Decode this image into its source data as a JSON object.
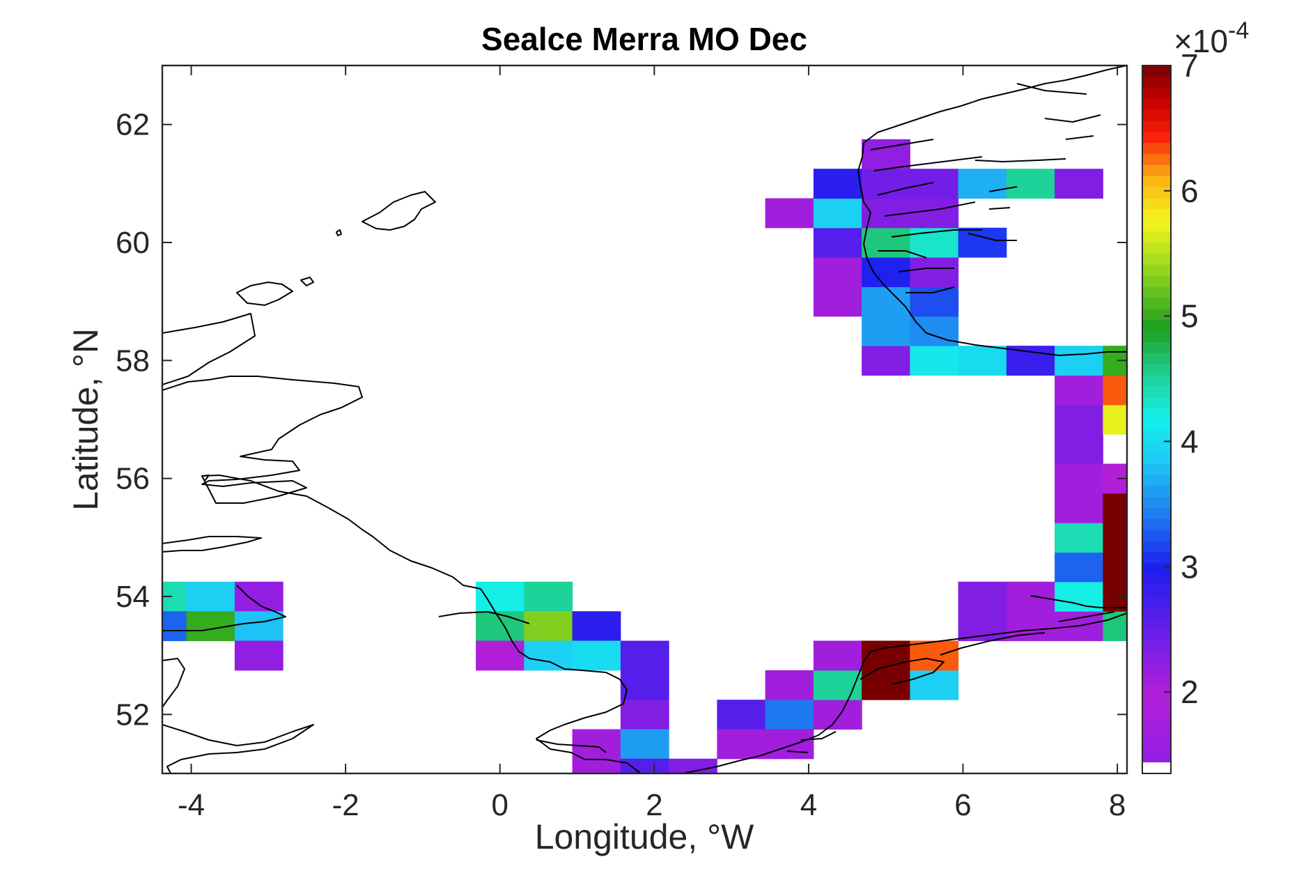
{
  "chart_data": {
    "type": "heatmap",
    "title": "Sealce Merra MO Dec",
    "xlabel": "Longitude, °W",
    "ylabel": "Latitude, °N",
    "xlim": [
      -4.375,
      8.125
    ],
    "ylim": [
      51,
      63
    ],
    "x_ticks": [
      -4,
      -2,
      0,
      2,
      4,
      6,
      8
    ],
    "y_ticks": [
      52,
      54,
      56,
      58,
      60,
      62
    ],
    "x_tick_labels": [
      "-4",
      "-2",
      "0",
      "2",
      "4",
      "6",
      "8"
    ],
    "y_tick_labels": [
      "52",
      "54",
      "56",
      "58",
      "60",
      "62"
    ],
    "colorbar": {
      "range": [
        1.35,
        7.0
      ],
      "ticks": [
        2,
        3,
        4,
        5,
        6,
        7
      ],
      "tick_labels": [
        "2",
        "3",
        "4",
        "5",
        "6",
        "7"
      ],
      "multiplier_base": "×10",
      "multiplier_exp": "-4"
    },
    "cell_size": {
      "dlon": 0.625,
      "dlat": 0.5
    },
    "grid_on": false,
    "cells": [
      [
        -4.375,
        54.0,
        4.4
      ],
      [
        -3.75,
        54.0,
        3.9
      ],
      [
        -3.125,
        54.0,
        2.2
      ],
      [
        -4.375,
        53.5,
        3.3
      ],
      [
        -3.75,
        53.5,
        5.0
      ],
      [
        -3.125,
        53.5,
        3.8
      ],
      [
        -3.125,
        53.0,
        2.2
      ],
      [
        0.0,
        54.0,
        4.2
      ],
      [
        0.625,
        54.0,
        4.5
      ],
      [
        0.0,
        53.5,
        4.6
      ],
      [
        0.625,
        53.5,
        5.3
      ],
      [
        1.25,
        53.5,
        2.9
      ],
      [
        0.0,
        53.0,
        2.0
      ],
      [
        0.625,
        53.0,
        3.9
      ],
      [
        1.25,
        53.0,
        4.0
      ],
      [
        1.875,
        53.0,
        2.6
      ],
      [
        1.875,
        52.5,
        2.6
      ],
      [
        1.875,
        52.0,
        2.3
      ],
      [
        1.25,
        51.5,
        2.1
      ],
      [
        1.875,
        51.5,
        3.6
      ],
      [
        1.25,
        51.0,
        2.1
      ],
      [
        1.875,
        51.0,
        2.6
      ],
      [
        2.5,
        51.0,
        2.3
      ],
      [
        3.125,
        52.0,
        2.6
      ],
      [
        3.75,
        52.0,
        3.4
      ],
      [
        4.375,
        52.0,
        2.1
      ],
      [
        3.125,
        51.5,
        2.1
      ],
      [
        3.75,
        51.5,
        2.1
      ],
      [
        3.75,
        52.5,
        2.1
      ],
      [
        4.375,
        52.5,
        4.5
      ],
      [
        5.0,
        52.5,
        7.0
      ],
      [
        5.625,
        52.5,
        3.9
      ],
      [
        4.375,
        53.0,
        2.1
      ],
      [
        5.0,
        53.0,
        7.0
      ],
      [
        5.625,
        53.0,
        6.3
      ],
      [
        6.25,
        53.5,
        2.3
      ],
      [
        6.875,
        53.5,
        2.1
      ],
      [
        7.5,
        53.5,
        2.1
      ],
      [
        8.125,
        53.5,
        4.6
      ],
      [
        6.25,
        54.0,
        2.3
      ],
      [
        6.875,
        54.0,
        2.1
      ],
      [
        7.5,
        54.0,
        4.2
      ],
      [
        8.125,
        54.0,
        7.0
      ],
      [
        7.5,
        54.5,
        3.3
      ],
      [
        8.125,
        54.5,
        7.0
      ],
      [
        7.5,
        55.0,
        4.4
      ],
      [
        8.125,
        55.0,
        7.0
      ],
      [
        7.5,
        55.5,
        2.1
      ],
      [
        8.125,
        55.5,
        7.0
      ],
      [
        7.5,
        56.0,
        2.1
      ],
      [
        8.125,
        56.0,
        2.0
      ],
      [
        7.5,
        56.5,
        2.3
      ],
      [
        7.5,
        57.0,
        2.3
      ],
      [
        8.125,
        57.0,
        5.7
      ],
      [
        7.5,
        57.5,
        2.1
      ],
      [
        8.125,
        57.5,
        6.3
      ],
      [
        5.0,
        58.0,
        2.3
      ],
      [
        5.625,
        58.0,
        4.1
      ],
      [
        6.25,
        58.0,
        4.0
      ],
      [
        6.875,
        58.0,
        2.8
      ],
      [
        7.5,
        58.0,
        3.9
      ],
      [
        8.125,
        58.0,
        5.0
      ],
      [
        5.0,
        58.5,
        3.6
      ],
      [
        5.625,
        58.5,
        3.5
      ],
      [
        4.375,
        59.0,
        2.1
      ],
      [
        5.0,
        59.0,
        3.6
      ],
      [
        5.625,
        59.0,
        3.2
      ],
      [
        4.375,
        59.5,
        2.1
      ],
      [
        5.0,
        59.5,
        3.0
      ],
      [
        5.625,
        59.5,
        2.3
      ],
      [
        4.375,
        60.0,
        2.6
      ],
      [
        5.0,
        60.0,
        4.6
      ],
      [
        5.625,
        60.0,
        4.3
      ],
      [
        6.25,
        60.0,
        3.1
      ],
      [
        3.75,
        60.5,
        2.1
      ],
      [
        4.375,
        60.5,
        3.9
      ],
      [
        5.0,
        60.5,
        2.3
      ],
      [
        5.625,
        60.5,
        2.3
      ],
      [
        4.375,
        61.0,
        2.9
      ],
      [
        5.0,
        61.0,
        2.4
      ],
      [
        5.625,
        61.0,
        2.4
      ],
      [
        6.25,
        61.0,
        3.7
      ],
      [
        6.875,
        61.0,
        4.5
      ],
      [
        7.5,
        61.0,
        2.3
      ],
      [
        5.0,
        61.5,
        2.2
      ]
    ]
  }
}
